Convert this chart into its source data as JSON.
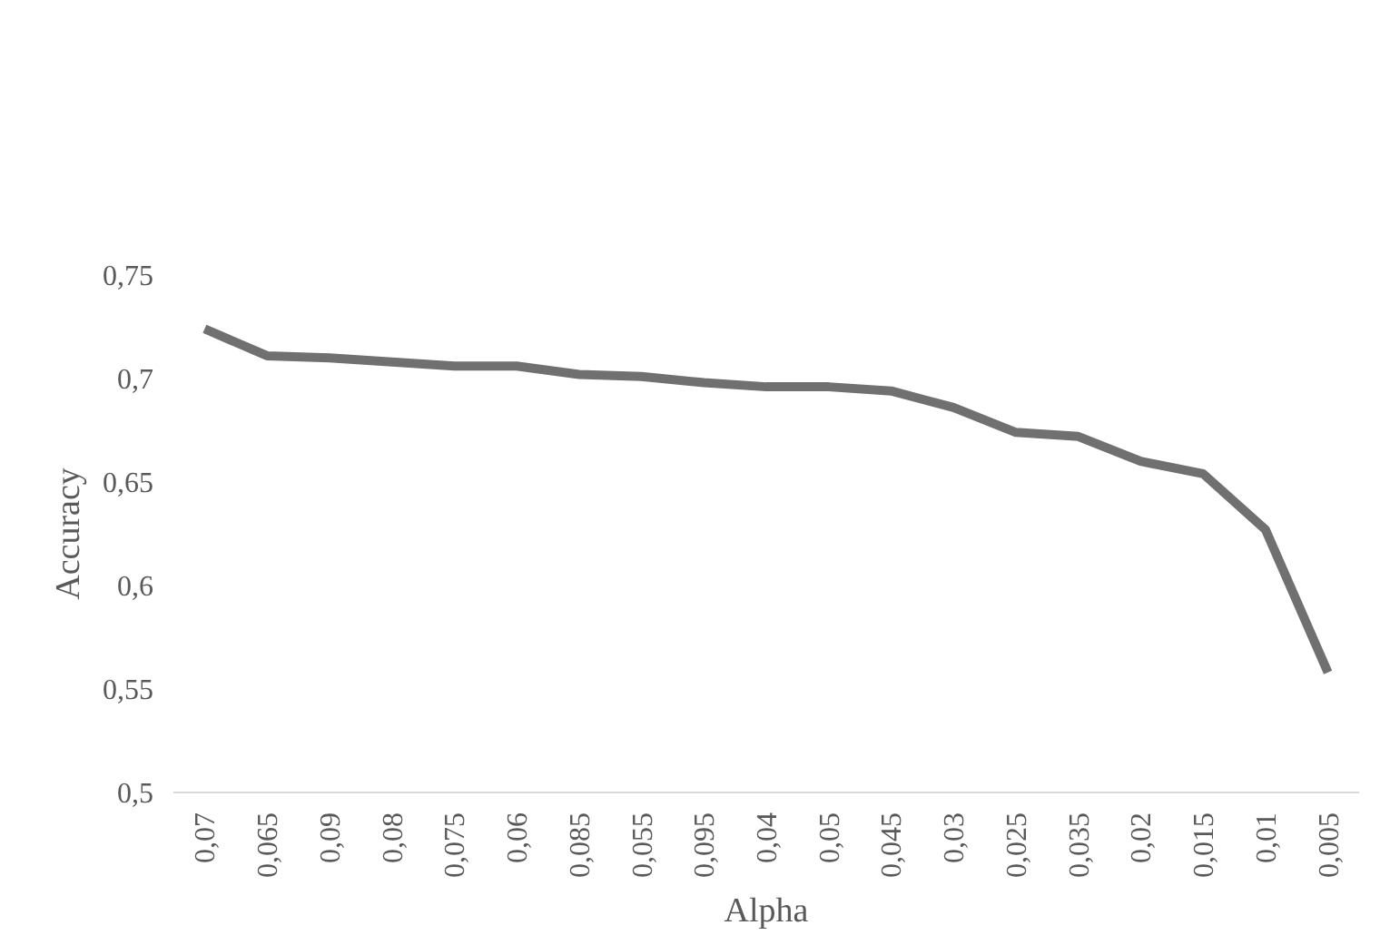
{
  "chart_data": {
    "type": "line",
    "xlabel": "Alpha",
    "ylabel": "Accuracy",
    "categories": [
      "0,07",
      "0,065",
      "0,09",
      "0,08",
      "0,075",
      "0,06",
      "0,085",
      "0,055",
      "0,095",
      "0,04",
      "0,05",
      "0,045",
      "0,03",
      "0,025",
      "0,035",
      "0,02",
      "0,015",
      "0,01",
      "0,005"
    ],
    "series": [
      {
        "color": "#707070",
        "values": [
          0.724,
          0.711,
          0.71,
          0.708,
          0.706,
          0.706,
          0.702,
          0.701,
          0.698,
          0.696,
          0.696,
          0.694,
          0.686,
          0.674,
          0.672,
          0.66,
          0.654,
          0.627,
          0.558
        ]
      }
    ],
    "ylim": [
      0.5,
      0.75
    ],
    "yticks": [
      {
        "value": 0.5,
        "label": "0,5"
      },
      {
        "value": 0.55,
        "label": "0,55"
      },
      {
        "value": 0.6,
        "label": "0,6"
      },
      {
        "value": 0.65,
        "label": "0,65"
      },
      {
        "value": 0.7,
        "label": "0,7"
      },
      {
        "value": 0.75,
        "label": "0,75"
      }
    ],
    "grid": false,
    "marker": "none",
    "line_style": "solid"
  }
}
